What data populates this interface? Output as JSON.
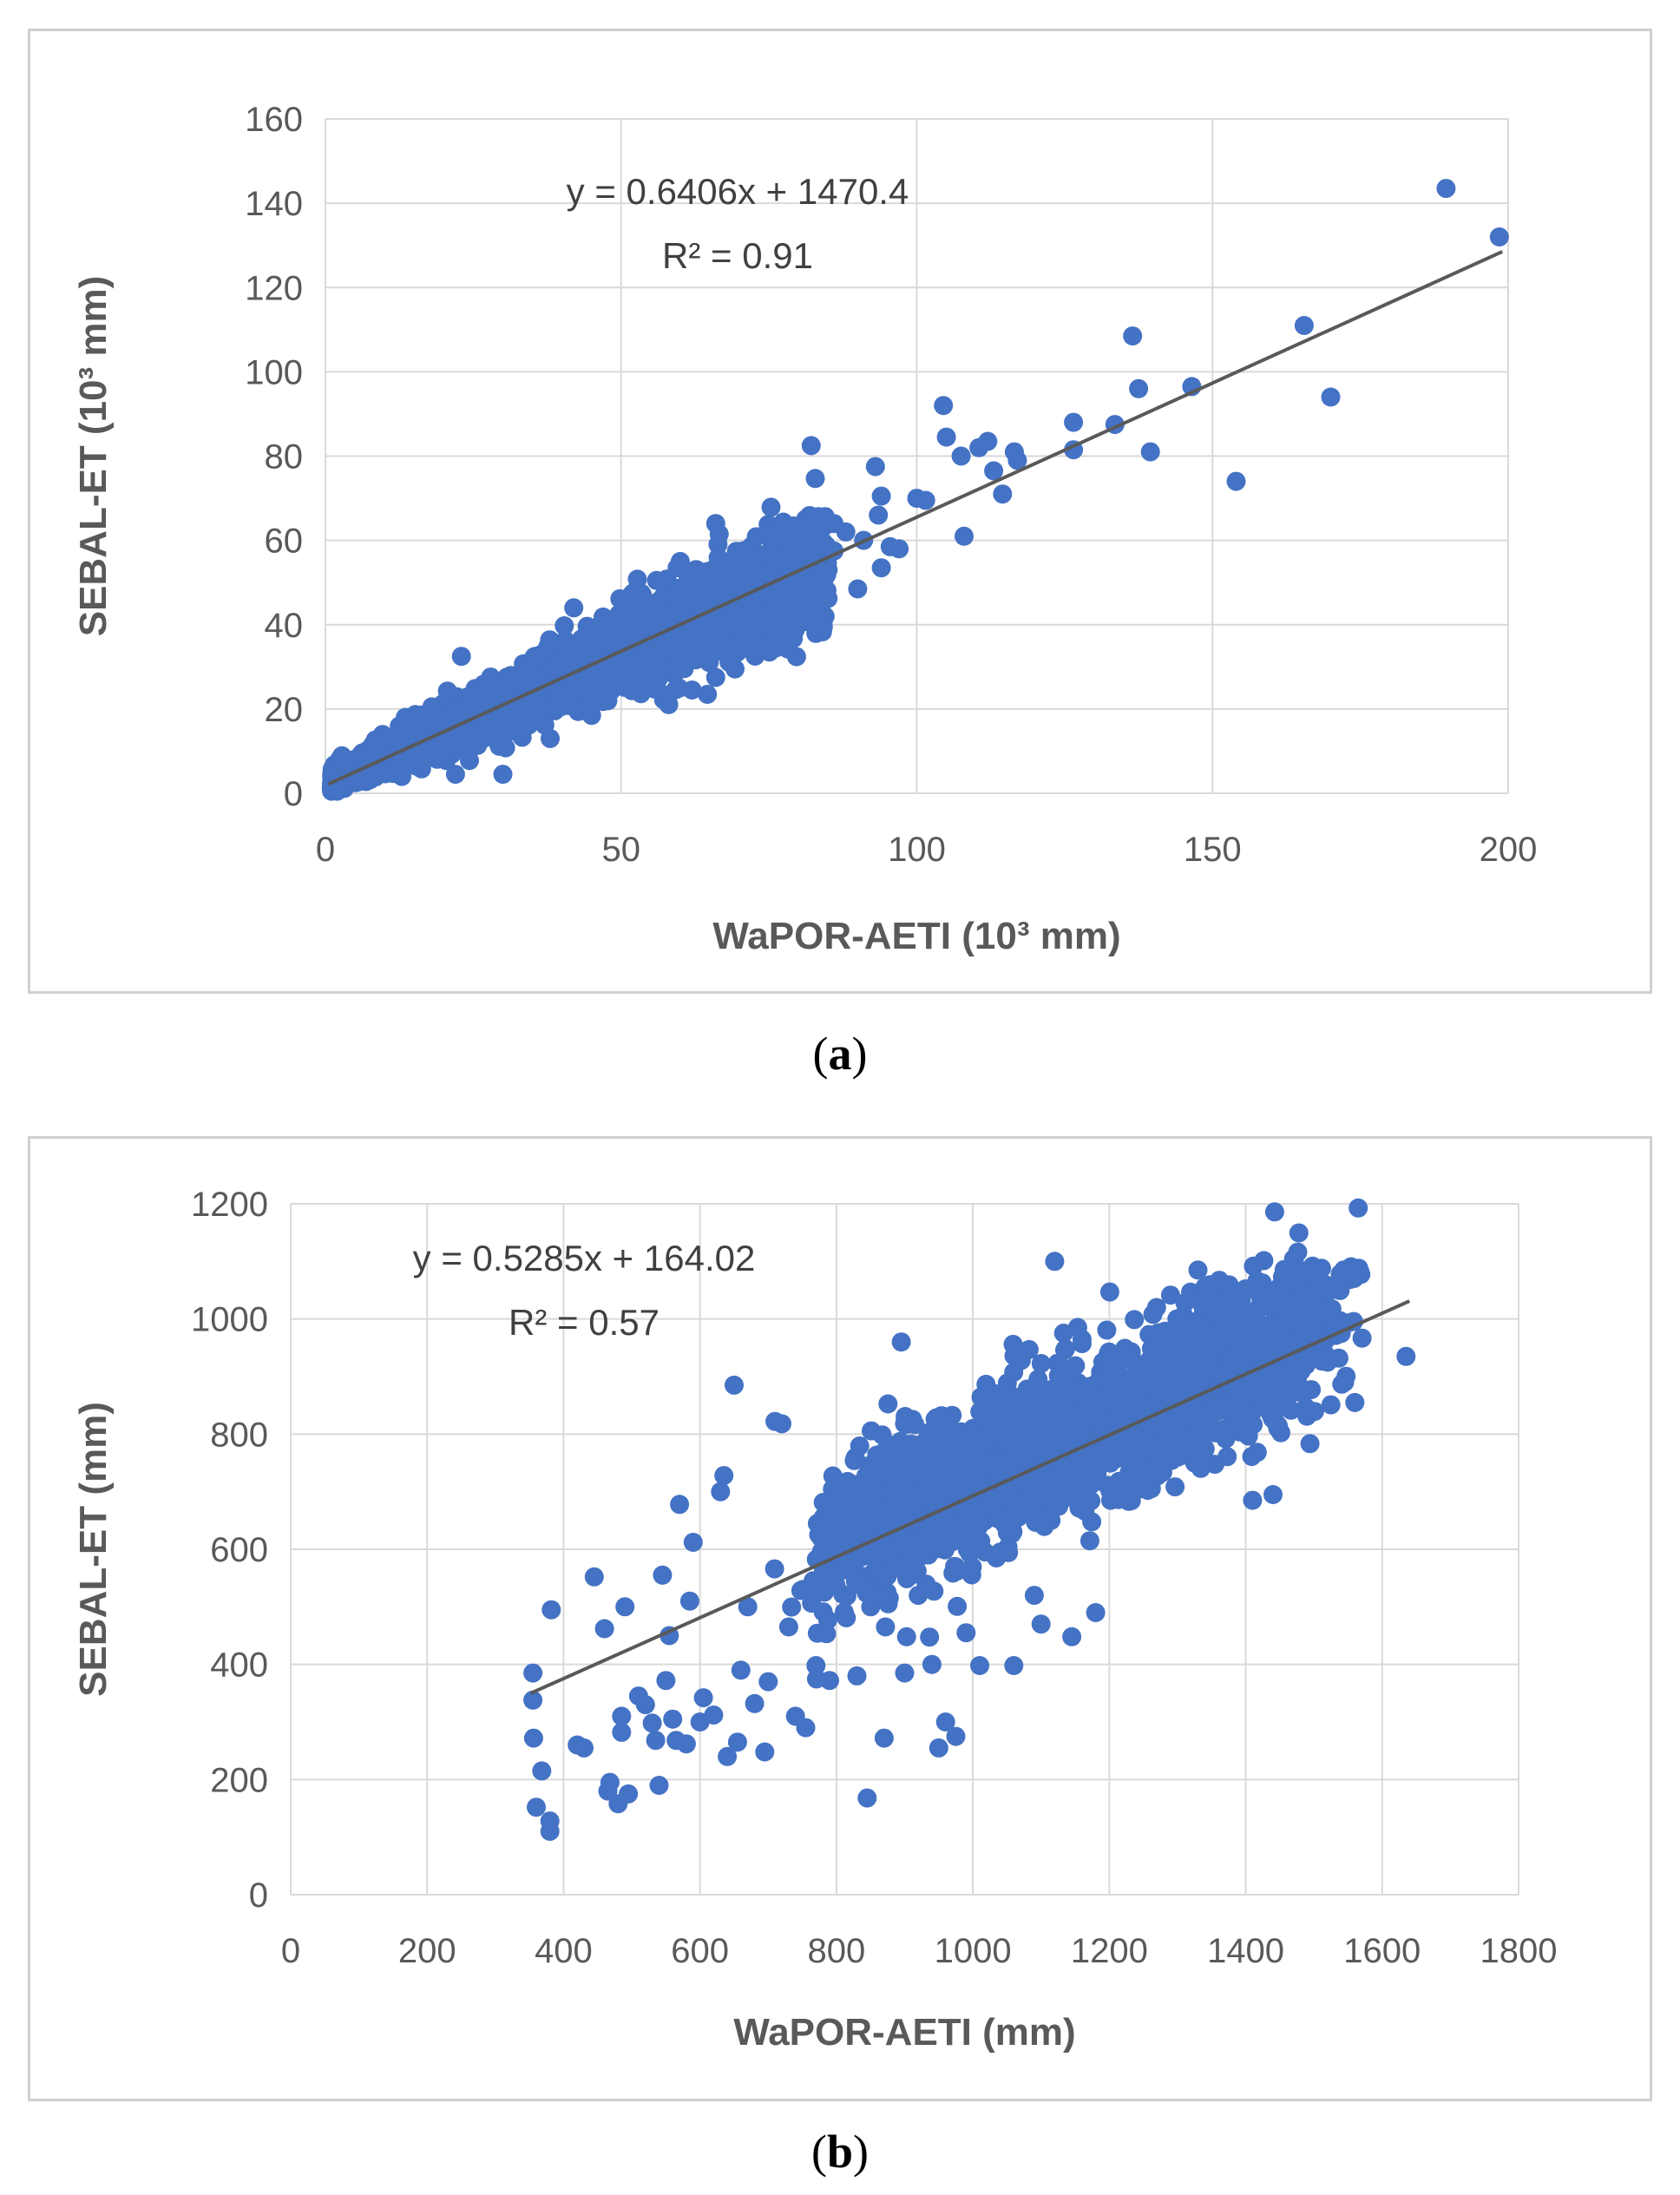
{
  "chart_data": [
    {
      "type": "scatter",
      "panel_label": "a",
      "xlabel": "WaPOR-AETI (10³ mm)",
      "ylabel": "SEBAL-ET  (10³ mm)",
      "xlim": [
        0,
        200
      ],
      "ylim": [
        0,
        160
      ],
      "xticks": [
        "0",
        "50",
        "100",
        "150",
        "200"
      ],
      "yticks": [
        "0",
        "20",
        "40",
        "60",
        "80",
        "100",
        "120",
        "140",
        "160"
      ],
      "grid": true,
      "marker_color": "#4472c4",
      "trendline_color": "#595959",
      "trendline": {
        "equation": "y = 0.6406x + 1470.4",
        "r_squared": "R² = 0.91",
        "x_range": [
          0.5,
          199
        ],
        "y_range": [
          2.2,
          128.5
        ]
      },
      "cloud": {
        "x_min": 1,
        "x_max": 85,
        "slope": 0.615,
        "intercept": 2.5,
        "spread": 3.2,
        "n": 1800
      },
      "outliers": [
        [
          189.5,
          143.5
        ],
        [
          198.5,
          132
        ],
        [
          165.5,
          111
        ],
        [
          136.5,
          108.5
        ],
        [
          146.5,
          96.5
        ],
        [
          137.5,
          96
        ],
        [
          170,
          94
        ],
        [
          154,
          74
        ],
        [
          104.5,
          92
        ],
        [
          105,
          84.5
        ],
        [
          112,
          83.5
        ],
        [
          110.5,
          82
        ],
        [
          116.5,
          81
        ],
        [
          117,
          79
        ],
        [
          133.5,
          87.5
        ],
        [
          126.5,
          88
        ],
        [
          126.5,
          81.5
        ],
        [
          107.5,
          80
        ],
        [
          139.5,
          81
        ],
        [
          113,
          76.5
        ],
        [
          114.5,
          71
        ],
        [
          93,
          77.5
        ],
        [
          94,
          70.5
        ],
        [
          93.5,
          66
        ],
        [
          100,
          70
        ],
        [
          101.5,
          69.5
        ],
        [
          108,
          61
        ],
        [
          97,
          58
        ],
        [
          95.5,
          58.5
        ],
        [
          91,
          60
        ],
        [
          94,
          53.5
        ],
        [
          66,
          64
        ],
        [
          86,
          64
        ],
        [
          86,
          57.5
        ],
        [
          83,
          41.5
        ],
        [
          78,
          40
        ],
        [
          75,
          42
        ],
        [
          70,
          43
        ],
        [
          62,
          24.5
        ],
        [
          66,
          27.5
        ],
        [
          45,
          18.5
        ],
        [
          38,
          13
        ],
        [
          30,
          4.5
        ],
        [
          22,
          4.5
        ],
        [
          23,
          32.5
        ],
        [
          18,
          20.5
        ],
        [
          28,
          27
        ],
        [
          60,
          55
        ],
        [
          56,
          50.5
        ],
        [
          52,
          47.5
        ],
        [
          42,
          44
        ],
        [
          72,
          52
        ],
        [
          80,
          57
        ],
        [
          88,
          62
        ],
        [
          90,
          48.5
        ],
        [
          85,
          53
        ],
        [
          78,
          49.5
        ]
      ]
    },
    {
      "type": "scatter",
      "panel_label": "b",
      "xlabel": "WaPOR-AETI (mm)",
      "ylabel": "SEBAL-ET (mm)",
      "xlim": [
        0,
        1800
      ],
      "ylim": [
        0,
        1200
      ],
      "xticks": [
        "0",
        "200",
        "400",
        "600",
        "800",
        "1000",
        "1200",
        "1400",
        "1600",
        "1800"
      ],
      "yticks": [
        "0",
        "200",
        "400",
        "600",
        "800",
        "1000",
        "1200"
      ],
      "grid": true,
      "marker_color": "#4472c4",
      "trendline_color": "#595959",
      "trendline": {
        "equation": "y = 0.5285x + 164.02",
        "r_squared": "R² = 0.57",
        "x_range": [
          352,
          1640
        ],
        "y_range": [
          350,
          1031
        ]
      },
      "cloud": {
        "x_min": 800,
        "x_max": 1500,
        "slope": 0.5285,
        "intercept": 190,
        "spread": 70,
        "n": 1700
      },
      "outliers": [
        [
          355,
          385
        ],
        [
          355,
          338
        ],
        [
          356,
          272
        ],
        [
          360,
          152
        ],
        [
          368,
          215
        ],
        [
          380,
          128
        ],
        [
          380,
          110
        ],
        [
          382,
          495
        ],
        [
          420,
          260
        ],
        [
          430,
          255
        ],
        [
          445,
          552
        ],
        [
          460,
          462
        ],
        [
          465,
          180
        ],
        [
          468,
          195
        ],
        [
          480,
          158
        ],
        [
          485,
          310
        ],
        [
          485,
          282
        ],
        [
          490,
          500
        ],
        [
          495,
          175
        ],
        [
          510,
          345
        ],
        [
          520,
          330
        ],
        [
          530,
          298
        ],
        [
          535,
          268
        ],
        [
          540,
          190
        ],
        [
          545,
          555
        ],
        [
          550,
          372
        ],
        [
          555,
          450
        ],
        [
          560,
          305
        ],
        [
          565,
          268
        ],
        [
          570,
          678
        ],
        [
          580,
          262
        ],
        [
          585,
          510
        ],
        [
          590,
          612
        ],
        [
          600,
          300
        ],
        [
          605,
          342
        ],
        [
          620,
          312
        ],
        [
          630,
          700
        ],
        [
          635,
          728
        ],
        [
          640,
          240
        ],
        [
          650,
          885
        ],
        [
          655,
          265
        ],
        [
          660,
          390
        ],
        [
          670,
          500
        ],
        [
          680,
          332
        ],
        [
          695,
          248
        ],
        [
          700,
          370
        ],
        [
          710,
          822
        ],
        [
          720,
          818
        ],
        [
          730,
          465
        ],
        [
          740,
          310
        ],
        [
          755,
          290
        ],
        [
          770,
          398
        ],
        [
          790,
          372
        ],
        [
          830,
          380
        ],
        [
          845,
          168
        ],
        [
          870,
          272
        ],
        [
          895,
          960
        ],
        [
          900,
          385
        ],
        [
          920,
          520
        ],
        [
          940,
          400
        ],
        [
          950,
          255
        ],
        [
          960,
          300
        ],
        [
          975,
          275
        ],
        [
          990,
          455
        ],
        [
          1010,
          398
        ],
        [
          1040,
          595
        ],
        [
          1060,
          398
        ],
        [
          1090,
          520
        ],
        [
          1100,
          470
        ],
        [
          1120,
          1100
        ],
        [
          1145,
          448
        ],
        [
          1180,
          490
        ],
        [
          1330,
          1085
        ],
        [
          1340,
          1055
        ],
        [
          1410,
          685
        ],
        [
          1440,
          695
        ],
        [
          1520,
          925
        ],
        [
          1540,
          975
        ],
        [
          1545,
          890
        ],
        [
          1560,
          855
        ],
        [
          1635,
          935
        ],
        [
          1500,
          955
        ]
      ]
    }
  ]
}
